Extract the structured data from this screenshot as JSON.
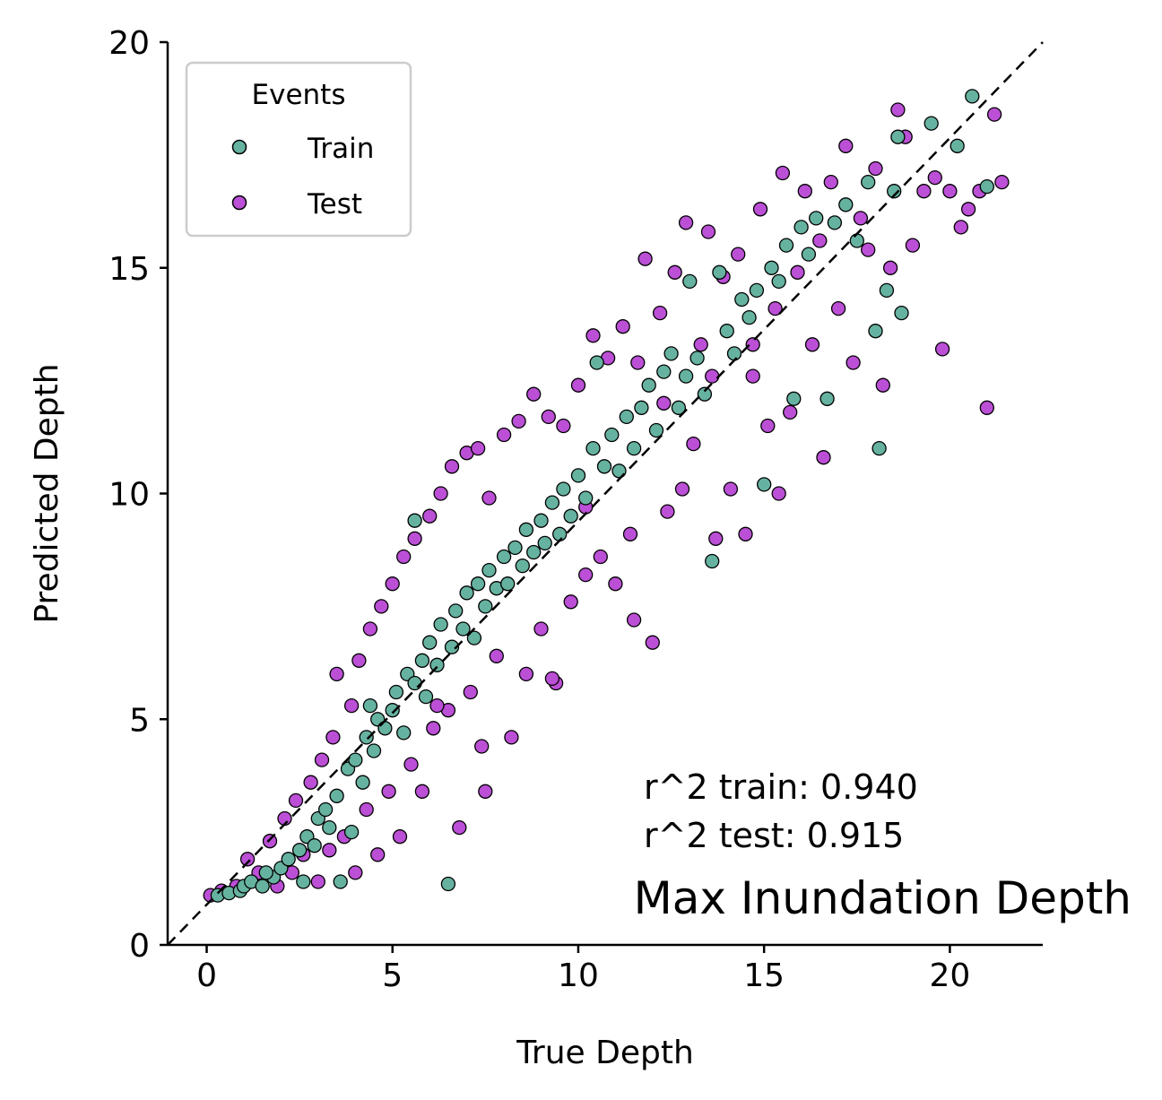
{
  "chart_data": {
    "type": "scatter",
    "title": "",
    "xlabel": "True Depth",
    "ylabel": "Predicted Depth",
    "xlim": [
      -1.05,
      22.5
    ],
    "ylim": [
      0,
      20
    ],
    "xticks": [
      0,
      5,
      10,
      15,
      20
    ],
    "yticks": [
      0,
      5,
      10,
      15,
      20
    ],
    "grid": false,
    "legend": {
      "title": "Events",
      "placement": "top-left"
    },
    "reference_line": {
      "style": "dashed",
      "from": [
        -1.05,
        0
      ],
      "to": [
        22.5,
        20
      ]
    },
    "series": [
      {
        "name": "Train",
        "color": "#66b2a0",
        "points": [
          [
            0.3,
            1.1
          ],
          [
            0.6,
            1.15
          ],
          [
            0.9,
            1.2
          ],
          [
            1.0,
            1.3
          ],
          [
            1.2,
            1.4
          ],
          [
            1.5,
            1.3
          ],
          [
            1.8,
            1.5
          ],
          [
            2.0,
            1.7
          ],
          [
            2.2,
            1.9
          ],
          [
            2.5,
            2.1
          ],
          [
            2.7,
            2.4
          ],
          [
            2.9,
            2.2
          ],
          [
            3.0,
            2.8
          ],
          [
            3.2,
            3.0
          ],
          [
            3.3,
            2.6
          ],
          [
            3.5,
            3.3
          ],
          [
            3.6,
            1.4
          ],
          [
            3.8,
            3.9
          ],
          [
            4.0,
            4.1
          ],
          [
            4.2,
            3.6
          ],
          [
            4.3,
            4.6
          ],
          [
            4.5,
            4.3
          ],
          [
            4.6,
            5.0
          ],
          [
            4.8,
            4.8
          ],
          [
            5.0,
            5.2
          ],
          [
            5.1,
            5.6
          ],
          [
            5.3,
            4.7
          ],
          [
            5.4,
            6.0
          ],
          [
            5.6,
            5.8
          ],
          [
            5.8,
            6.3
          ],
          [
            5.9,
            5.5
          ],
          [
            6.0,
            6.7
          ],
          [
            6.2,
            6.2
          ],
          [
            6.3,
            7.1
          ],
          [
            6.5,
            1.35
          ],
          [
            6.6,
            6.6
          ],
          [
            6.7,
            7.4
          ],
          [
            6.9,
            7.0
          ],
          [
            7.0,
            7.8
          ],
          [
            7.2,
            6.8
          ],
          [
            7.3,
            8.0
          ],
          [
            7.5,
            7.5
          ],
          [
            7.6,
            8.3
          ],
          [
            7.8,
            7.9
          ],
          [
            8.0,
            8.6
          ],
          [
            8.1,
            8.0
          ],
          [
            8.3,
            8.8
          ],
          [
            8.5,
            8.4
          ],
          [
            8.6,
            9.2
          ],
          [
            8.8,
            8.7
          ],
          [
            9.0,
            9.4
          ],
          [
            9.1,
            8.9
          ],
          [
            9.3,
            9.8
          ],
          [
            9.5,
            9.1
          ],
          [
            9.6,
            10.1
          ],
          [
            9.8,
            9.5
          ],
          [
            10.0,
            10.4
          ],
          [
            10.2,
            9.9
          ],
          [
            10.4,
            11.0
          ],
          [
            10.5,
            12.9
          ],
          [
            10.7,
            10.6
          ],
          [
            10.9,
            11.3
          ],
          [
            11.1,
            10.5
          ],
          [
            11.3,
            11.7
          ],
          [
            11.5,
            11.0
          ],
          [
            11.7,
            11.9
          ],
          [
            11.9,
            12.4
          ],
          [
            12.1,
            11.4
          ],
          [
            12.3,
            12.7
          ],
          [
            12.5,
            13.1
          ],
          [
            12.7,
            11.9
          ],
          [
            12.9,
            12.6
          ],
          [
            13.0,
            14.7
          ],
          [
            13.2,
            13.0
          ],
          [
            13.4,
            12.2
          ],
          [
            13.6,
            8.5
          ],
          [
            13.8,
            14.9
          ],
          [
            14.0,
            13.6
          ],
          [
            14.2,
            13.1
          ],
          [
            14.4,
            14.3
          ],
          [
            14.6,
            13.9
          ],
          [
            14.8,
            14.5
          ],
          [
            15.0,
            10.2
          ],
          [
            15.2,
            15.0
          ],
          [
            15.4,
            14.7
          ],
          [
            15.6,
            15.5
          ],
          [
            15.8,
            12.1
          ],
          [
            16.0,
            15.9
          ],
          [
            16.2,
            15.3
          ],
          [
            16.4,
            16.1
          ],
          [
            16.7,
            12.1
          ],
          [
            16.9,
            16.0
          ],
          [
            17.2,
            16.4
          ],
          [
            17.5,
            15.6
          ],
          [
            17.8,
            16.9
          ],
          [
            18.0,
            13.6
          ],
          [
            18.1,
            11.0
          ],
          [
            18.3,
            14.5
          ],
          [
            18.5,
            16.7
          ],
          [
            18.6,
            17.9
          ],
          [
            18.7,
            14.0
          ],
          [
            19.5,
            18.2
          ],
          [
            20.2,
            17.7
          ],
          [
            20.6,
            18.8
          ],
          [
            21.0,
            16.8
          ],
          [
            5.6,
            9.4
          ],
          [
            4.4,
            5.3
          ],
          [
            3.9,
            2.5
          ],
          [
            2.6,
            1.4
          ],
          [
            1.6,
            1.6
          ]
        ]
      },
      {
        "name": "Test",
        "color": "#bb4fd6",
        "points": [
          [
            0.1,
            1.1
          ],
          [
            0.4,
            1.2
          ],
          [
            0.8,
            1.3
          ],
          [
            1.1,
            1.9
          ],
          [
            1.4,
            1.6
          ],
          [
            1.7,
            2.3
          ],
          [
            1.9,
            1.3
          ],
          [
            2.1,
            2.8
          ],
          [
            2.3,
            1.6
          ],
          [
            2.4,
            3.2
          ],
          [
            2.6,
            2.0
          ],
          [
            2.8,
            3.6
          ],
          [
            3.0,
            1.4
          ],
          [
            3.1,
            4.1
          ],
          [
            3.3,
            2.1
          ],
          [
            3.4,
            4.6
          ],
          [
            3.5,
            6.0
          ],
          [
            3.7,
            2.4
          ],
          [
            3.9,
            5.3
          ],
          [
            4.0,
            1.6
          ],
          [
            4.1,
            6.3
          ],
          [
            4.3,
            3.0
          ],
          [
            4.4,
            7.0
          ],
          [
            4.6,
            2.0
          ],
          [
            4.7,
            7.5
          ],
          [
            4.9,
            3.4
          ],
          [
            5.0,
            8.0
          ],
          [
            5.2,
            2.4
          ],
          [
            5.3,
            8.6
          ],
          [
            5.5,
            4.0
          ],
          [
            5.6,
            9.0
          ],
          [
            5.8,
            3.4
          ],
          [
            6.0,
            9.5
          ],
          [
            6.1,
            4.8
          ],
          [
            6.3,
            10.0
          ],
          [
            6.5,
            5.2
          ],
          [
            6.6,
            10.6
          ],
          [
            6.8,
            2.6
          ],
          [
            7.0,
            10.9
          ],
          [
            7.1,
            5.6
          ],
          [
            7.3,
            11.0
          ],
          [
            7.5,
            3.4
          ],
          [
            7.6,
            9.9
          ],
          [
            7.8,
            6.4
          ],
          [
            8.0,
            11.3
          ],
          [
            8.2,
            4.6
          ],
          [
            8.4,
            11.6
          ],
          [
            8.6,
            6.0
          ],
          [
            8.8,
            12.2
          ],
          [
            9.0,
            7.0
          ],
          [
            9.2,
            11.7
          ],
          [
            9.4,
            5.8
          ],
          [
            9.6,
            11.5
          ],
          [
            9.8,
            7.6
          ],
          [
            10.0,
            12.4
          ],
          [
            10.2,
            8.2
          ],
          [
            10.4,
            13.5
          ],
          [
            10.6,
            8.6
          ],
          [
            10.8,
            13.0
          ],
          [
            11.0,
            8.0
          ],
          [
            11.2,
            13.7
          ],
          [
            11.4,
            9.1
          ],
          [
            11.6,
            12.9
          ],
          [
            11.8,
            15.2
          ],
          [
            12.0,
            6.7
          ],
          [
            12.2,
            14.0
          ],
          [
            12.4,
            9.6
          ],
          [
            12.6,
            14.9
          ],
          [
            12.8,
            10.1
          ],
          [
            12.9,
            16.0
          ],
          [
            13.1,
            11.1
          ],
          [
            13.3,
            13.3
          ],
          [
            13.5,
            15.8
          ],
          [
            13.7,
            9.0
          ],
          [
            13.9,
            14.8
          ],
          [
            14.1,
            10.1
          ],
          [
            14.3,
            15.3
          ],
          [
            14.5,
            9.1
          ],
          [
            14.7,
            13.3
          ],
          [
            14.9,
            16.3
          ],
          [
            15.1,
            11.5
          ],
          [
            15.3,
            14.1
          ],
          [
            15.5,
            17.1
          ],
          [
            15.7,
            11.8
          ],
          [
            15.9,
            14.9
          ],
          [
            16.1,
            16.7
          ],
          [
            16.3,
            13.3
          ],
          [
            16.5,
            15.6
          ],
          [
            16.8,
            16.9
          ],
          [
            17.0,
            14.1
          ],
          [
            17.2,
            17.7
          ],
          [
            17.4,
            12.9
          ],
          [
            17.6,
            16.1
          ],
          [
            17.8,
            15.4
          ],
          [
            18.0,
            17.2
          ],
          [
            18.2,
            12.4
          ],
          [
            18.4,
            15.0
          ],
          [
            18.6,
            18.5
          ],
          [
            18.8,
            17.9
          ],
          [
            19.0,
            15.5
          ],
          [
            19.3,
            16.7
          ],
          [
            19.6,
            17.0
          ],
          [
            19.8,
            13.2
          ],
          [
            20.0,
            16.7
          ],
          [
            20.3,
            15.9
          ],
          [
            20.5,
            16.3
          ],
          [
            20.8,
            16.7
          ],
          [
            21.0,
            11.9
          ],
          [
            21.2,
            18.4
          ],
          [
            21.4,
            16.9
          ],
          [
            16.6,
            10.8
          ],
          [
            14.7,
            12.6
          ],
          [
            13.6,
            12.6
          ],
          [
            12.3,
            12.0
          ],
          [
            9.3,
            5.9
          ],
          [
            7.4,
            4.4
          ],
          [
            6.2,
            5.3
          ],
          [
            11.5,
            7.2
          ],
          [
            10.2,
            9.7
          ],
          [
            15.4,
            10.0
          ]
        ]
      }
    ],
    "annotations": [
      {
        "text": "r^2 train: 0.940"
      },
      {
        "text": "r^2 test: 0.915"
      },
      {
        "text": "Max Inundation Depth"
      }
    ]
  }
}
